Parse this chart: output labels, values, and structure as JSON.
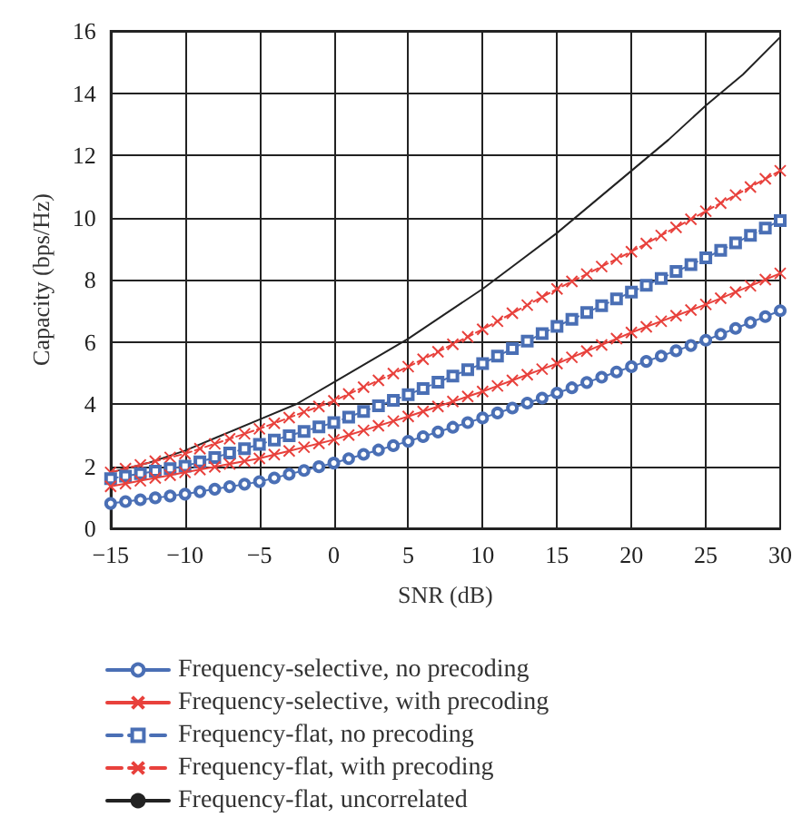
{
  "chart_data": {
    "type": "line",
    "xlabel": "SNR (dB)",
    "ylabel": "Capacity (bps/Hz)",
    "x": [
      -15,
      -14,
      -13,
      -12,
      -11,
      -10,
      -9,
      -8,
      -7,
      -6,
      -5,
      -4,
      -3,
      -2,
      -1,
      0,
      1,
      2,
      3,
      4,
      5,
      6,
      7,
      8,
      9,
      10,
      11,
      12,
      13,
      14,
      15,
      16,
      17,
      18,
      19,
      20,
      21,
      22,
      23,
      24,
      25,
      26,
      27,
      28,
      29,
      30
    ],
    "xlim": [
      -15,
      30
    ],
    "xticks": [
      {
        "value": -15,
        "label": "−15"
      },
      {
        "value": -10,
        "label": "−10"
      },
      {
        "value": -5,
        "label": "−5"
      },
      0,
      5,
      10,
      15,
      20,
      25,
      30
    ],
    "ylim": [
      0,
      16
    ],
    "yticks": [
      0,
      2,
      4,
      6,
      8,
      10,
      12,
      14,
      16
    ],
    "grid": true,
    "legend": "bottom",
    "series": [
      {
        "name": "Frequency-selective, no precoding",
        "color": "#4a6fb5",
        "marker": "circle",
        "line_style": "solid",
        "values": [
          0.8,
          0.86,
          0.92,
          0.98,
          1.04,
          1.1,
          1.18,
          1.26,
          1.34,
          1.42,
          1.5,
          1.62,
          1.74,
          1.86,
          1.98,
          2.1,
          2.24,
          2.38,
          2.52,
          2.66,
          2.8,
          2.95,
          3.1,
          3.25,
          3.4,
          3.55,
          3.71,
          3.87,
          4.03,
          4.19,
          4.35,
          4.52,
          4.69,
          4.86,
          5.03,
          5.2,
          5.37,
          5.54,
          5.71,
          5.88,
          6.05,
          6.24,
          6.43,
          6.62,
          6.81,
          7.0
        ]
      },
      {
        "name": "Frequency-selective, with precoding",
        "color": "#e8413c",
        "marker": "cross",
        "line_style": "solid",
        "values": [
          1.35,
          1.44,
          1.53,
          1.62,
          1.71,
          1.8,
          1.89,
          1.98,
          2.07,
          2.16,
          2.25,
          2.37,
          2.49,
          2.61,
          2.73,
          2.85,
          3.0,
          3.15,
          3.3,
          3.45,
          3.6,
          3.76,
          3.92,
          4.08,
          4.24,
          4.4,
          4.58,
          4.76,
          4.94,
          5.12,
          5.3,
          5.5,
          5.7,
          5.9,
          6.1,
          6.3,
          6.48,
          6.66,
          6.84,
          7.02,
          7.2,
          7.4,
          7.6,
          7.8,
          8.0,
          8.2
        ]
      },
      {
        "name": "Frequency-flat, no precoding",
        "color": "#4a6fb5",
        "marker": "square",
        "line_style": "dashed",
        "values": [
          1.6,
          1.68,
          1.76,
          1.84,
          1.92,
          2.0,
          2.14,
          2.28,
          2.42,
          2.56,
          2.7,
          2.84,
          2.98,
          3.12,
          3.26,
          3.4,
          3.58,
          3.76,
          3.94,
          4.12,
          4.3,
          4.5,
          4.7,
          4.9,
          5.1,
          5.3,
          5.54,
          5.78,
          6.02,
          6.26,
          6.5,
          6.72,
          6.94,
          7.16,
          7.38,
          7.6,
          7.82,
          8.04,
          8.26,
          8.48,
          8.7,
          8.94,
          9.18,
          9.42,
          9.66,
          9.9
        ]
      },
      {
        "name": "Frequency-flat, with precoding",
        "color": "#e8413c",
        "marker": "cross",
        "line_style": "dashed",
        "values": [
          1.8,
          1.92,
          2.04,
          2.16,
          2.28,
          2.4,
          2.56,
          2.72,
          2.88,
          3.04,
          3.2,
          3.38,
          3.56,
          3.74,
          3.92,
          4.1,
          4.32,
          4.54,
          4.76,
          4.98,
          5.2,
          5.44,
          5.68,
          5.92,
          6.16,
          6.4,
          6.66,
          6.92,
          7.18,
          7.44,
          7.7,
          7.94,
          8.18,
          8.42,
          8.66,
          8.9,
          9.16,
          9.42,
          9.68,
          9.94,
          10.2,
          10.46,
          10.72,
          10.98,
          11.24,
          11.5
        ]
      },
      {
        "name": "Frequency-flat, uncorrelated",
        "color": "#222222",
        "marker": "none",
        "line_style": "solid",
        "x": [
          -15,
          -12.5,
          -10,
          -7.5,
          -5,
          -2.5,
          0,
          2.5,
          5,
          7.5,
          10,
          12.5,
          15,
          17.5,
          20,
          22.5,
          25,
          27.5,
          30
        ],
        "values": [
          1.8,
          2.1,
          2.5,
          3.0,
          3.5,
          4.0,
          4.7,
          5.4,
          6.1,
          6.9,
          7.7,
          8.6,
          9.5,
          10.5,
          11.5,
          12.5,
          13.6,
          14.6,
          15.8
        ]
      }
    ]
  }
}
